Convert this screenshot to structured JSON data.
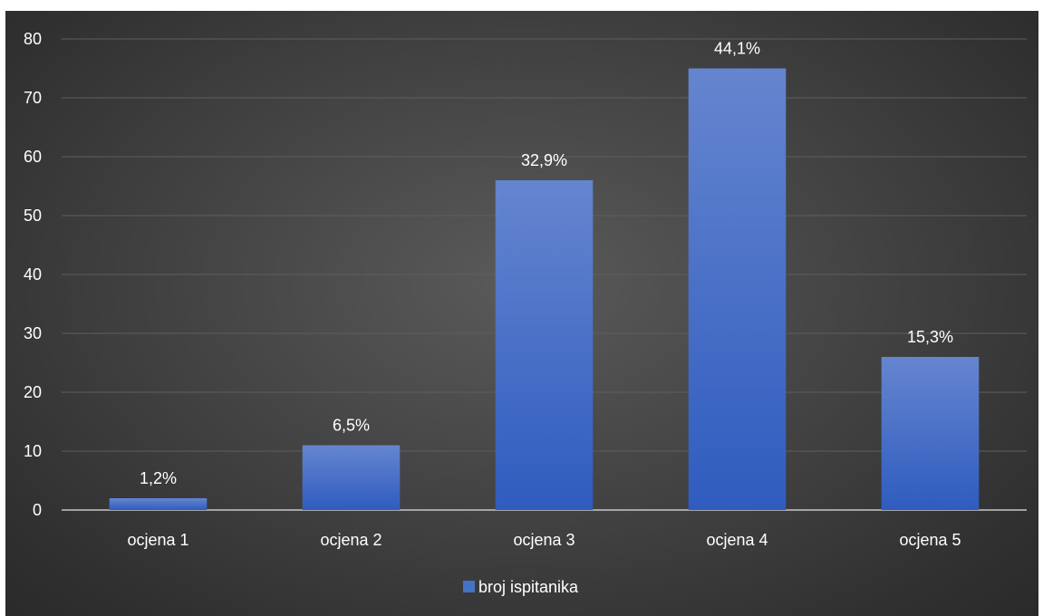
{
  "chart_data": {
    "type": "bar",
    "categories": [
      "ocjena 1",
      "ocjena 2",
      "ocjena 3",
      "ocjena 4",
      "ocjena 5"
    ],
    "series": [
      {
        "name": "broj ispitanika",
        "values": [
          2,
          11,
          56,
          75,
          26
        ],
        "data_labels": [
          "1,2%",
          "6,5%",
          "32,9%",
          "44,1%",
          "15,3%"
        ],
        "color": "#4472C4"
      }
    ],
    "ylim": [
      0,
      80
    ],
    "yticks": [
      "0",
      "10",
      "20",
      "30",
      "40",
      "50",
      "60",
      "70",
      "80"
    ],
    "grid": true,
    "legend_position": "bottom",
    "background": "#3c3c3c"
  }
}
